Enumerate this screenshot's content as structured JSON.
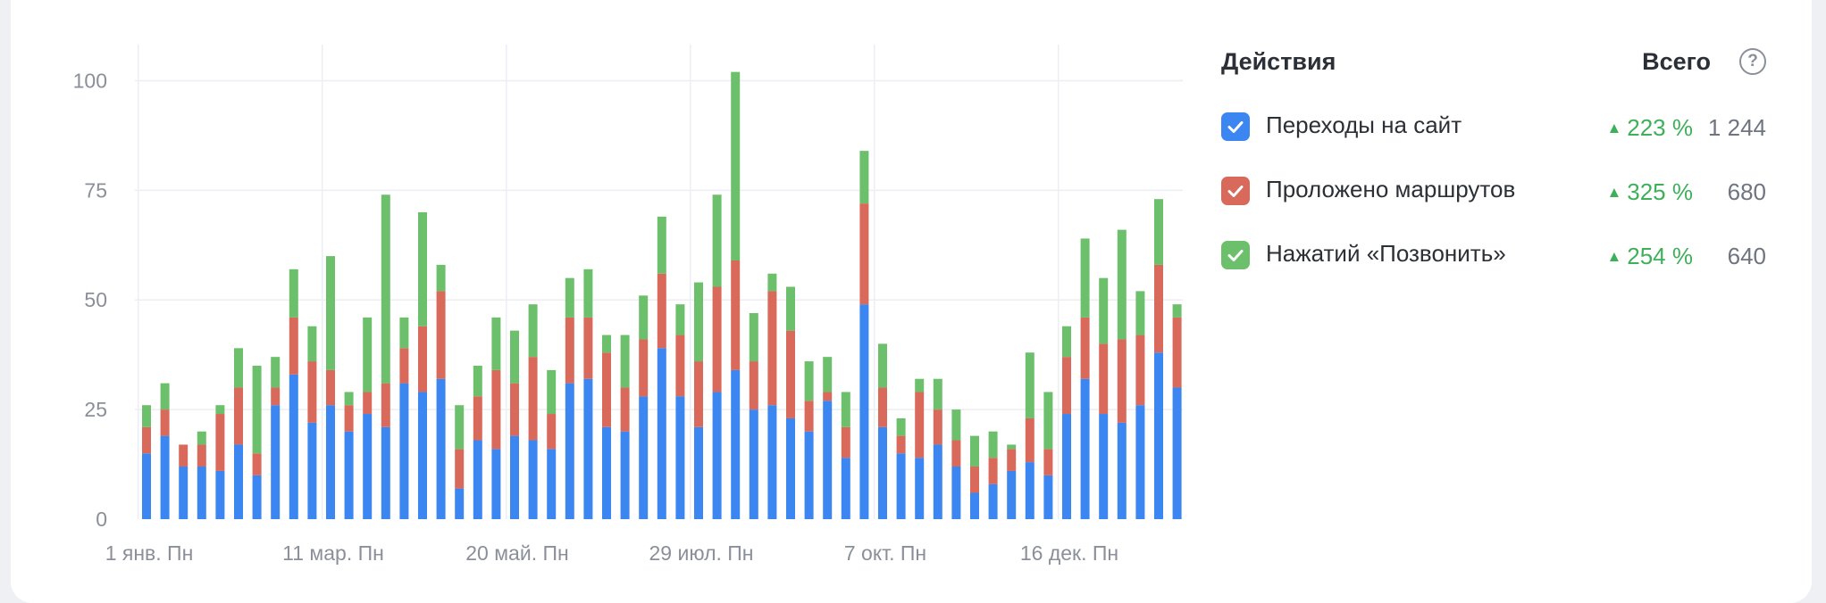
{
  "legend": {
    "title": "Действия",
    "total_label": "Всего",
    "help_icon": "question-circle-icon",
    "check_icon": "checkmark-icon",
    "items": [
      {
        "label": "Переходы на сайт",
        "change": "223 %",
        "total": "1 244",
        "color": "#3b86f0",
        "checked": true
      },
      {
        "label": "Проложено маршрутов",
        "change": "325 %",
        "total": "680",
        "color": "#d9695b",
        "checked": true
      },
      {
        "label": "Нажатий «Позвонить»",
        "change": "254 %",
        "total": "640",
        "color": "#6cc06c",
        "checked": true
      }
    ],
    "up_color": "#3fb05a",
    "up_icon": "triangle-up-icon"
  },
  "chart_data": {
    "type": "bar",
    "stacked": true,
    "ylim": [
      0,
      100
    ],
    "yticks": [
      0,
      25,
      50,
      75,
      100
    ],
    "xtick_labels": [
      "1 янв. Пн",
      "11 мар. Пн",
      "20 май. Пн",
      "29 июл. Пн",
      "7 окт. Пн",
      "16 дек. Пн"
    ],
    "xtick_indices": [
      0,
      10,
      20,
      30,
      40,
      50
    ],
    "grid": true,
    "series": [
      {
        "name": "Переходы на сайт",
        "color": "#3b86f0",
        "values": [
          15,
          19,
          12,
          12,
          11,
          17,
          10,
          26,
          33,
          22,
          26,
          20,
          24,
          21,
          31,
          29,
          32,
          7,
          18,
          16,
          19,
          18,
          16,
          31,
          32,
          21,
          20,
          28,
          39,
          28,
          21,
          29,
          34,
          25,
          26,
          23,
          20,
          27,
          14,
          49,
          21,
          15,
          14,
          17,
          12,
          6,
          8,
          11,
          13,
          10,
          24,
          32,
          24,
          22,
          26,
          38,
          30
        ]
      },
      {
        "name": "Проложено маршрутов",
        "color": "#d9695b",
        "values": [
          6,
          6,
          5,
          5,
          13,
          13,
          5,
          4,
          13,
          14,
          8,
          6,
          5,
          10,
          8,
          15,
          20,
          9,
          10,
          18,
          12,
          19,
          8,
          15,
          14,
          17,
          10,
          13,
          17,
          14,
          15,
          24,
          25,
          11,
          26,
          20,
          7,
          2,
          7,
          23,
          9,
          4,
          15,
          8,
          6,
          6,
          6,
          5,
          10,
          6,
          13,
          14,
          16,
          19,
          16,
          20,
          16
        ]
      },
      {
        "name": "Нажатий «Позвонить»",
        "color": "#6cc06c",
        "values": [
          5,
          6,
          0,
          3,
          2,
          9,
          20,
          7,
          11,
          8,
          26,
          3,
          17,
          43,
          7,
          26,
          6,
          10,
          7,
          12,
          12,
          12,
          10,
          9,
          11,
          4,
          12,
          10,
          13,
          7,
          18,
          21,
          43,
          11,
          4,
          10,
          9,
          8,
          8,
          12,
          10,
          4,
          3,
          7,
          7,
          7,
          6,
          1,
          15,
          13,
          7,
          18,
          15,
          25,
          10,
          15,
          3
        ]
      }
    ]
  }
}
